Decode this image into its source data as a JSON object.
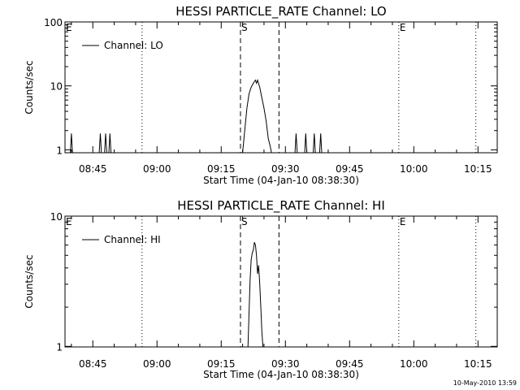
{
  "chart_data": [
    {
      "type": "line",
      "title": "HESSI PARTICLE_RATE Channel: LO",
      "xlabel": "Start Time (04-Jan-10 08:38:30)",
      "ylabel": "Counts/sec",
      "y_scale": "log",
      "ylim": [
        0.9,
        100
      ],
      "y_ticks": [
        {
          "value": 1,
          "label": "1"
        },
        {
          "value": 10,
          "label": "10"
        },
        {
          "value": 100,
          "label": "100"
        }
      ],
      "x_range": [
        "08:38:30",
        "10:19:30"
      ],
      "x_ticks": [
        {
          "value": "08:45",
          "label": "08:45"
        },
        {
          "value": "09:00",
          "label": "09:00"
        },
        {
          "value": "09:15",
          "label": "09:15"
        },
        {
          "value": "09:30",
          "label": "09:30"
        },
        {
          "value": "09:45",
          "label": "09:45"
        },
        {
          "value": "10:00",
          "label": "10:00"
        },
        {
          "value": "10:15",
          "label": "10:15"
        }
      ],
      "legend": {
        "entry": "Channel: LO",
        "placement": "top-left"
      },
      "markers": [
        {
          "time": "08:38:30",
          "label": "E",
          "style": "none"
        },
        {
          "time": "08:56:30",
          "label": "",
          "style": "dotted"
        },
        {
          "time": "09:19:30",
          "label": "S",
          "style": "dashed"
        },
        {
          "time": "09:28:30",
          "label": "",
          "style": "dashed"
        },
        {
          "time": "09:56:30",
          "label": "E",
          "style": "dotted"
        },
        {
          "time": "10:14:30",
          "label": "",
          "style": "dotted"
        }
      ],
      "series": [
        {
          "name": "Channel: LO",
          "segments": [
            [
              [
                "08:39:45",
                0.9
              ],
              [
                "08:40:00",
                1.8
              ],
              [
                "08:40:15",
                0.9
              ]
            ],
            [
              [
                "08:46:30",
                0.9
              ],
              [
                "08:46:45",
                1.8
              ],
              [
                "08:47:00",
                0.9
              ]
            ],
            [
              [
                "08:47:45",
                0.9
              ],
              [
                "08:48:00",
                1.8
              ],
              [
                "08:48:15",
                0.9
              ]
            ],
            [
              [
                "08:48:45",
                0.9
              ],
              [
                "08:49:00",
                1.8
              ],
              [
                "08:49:15",
                0.9
              ]
            ],
            [
              [
                "09:20:00",
                0.9
              ],
              [
                "09:20:30",
                2.0
              ],
              [
                "09:21:00",
                4.5
              ],
              [
                "09:21:30",
                7.5
              ],
              [
                "09:22:00",
                9.5
              ],
              [
                "09:22:30",
                11.0
              ],
              [
                "09:23:00",
                12.3
              ],
              [
                "09:23:15",
                11.0
              ],
              [
                "09:23:30",
                12.3
              ],
              [
                "09:24:00",
                9.5
              ],
              [
                "09:24:30",
                6.5
              ],
              [
                "09:25:00",
                4.5
              ],
              [
                "09:25:30",
                2.8
              ],
              [
                "09:26:00",
                1.5
              ],
              [
                "09:26:30",
                1.1
              ],
              [
                "09:26:45",
                0.9
              ]
            ],
            [
              [
                "09:32:15",
                0.9
              ],
              [
                "09:32:30",
                1.8
              ],
              [
                "09:32:45",
                0.9
              ]
            ],
            [
              [
                "09:34:30",
                0.9
              ],
              [
                "09:34:45",
                1.8
              ],
              [
                "09:35:00",
                0.9
              ]
            ],
            [
              [
                "09:36:30",
                0.9
              ],
              [
                "09:36:45",
                1.8
              ],
              [
                "09:37:00",
                0.9
              ]
            ],
            [
              [
                "09:38:00",
                0.9
              ],
              [
                "09:38:15",
                1.8
              ],
              [
                "09:38:30",
                0.9
              ]
            ]
          ]
        }
      ]
    },
    {
      "type": "line",
      "title": "HESSI PARTICLE_RATE Channel: HI",
      "xlabel": "Start Time (04-Jan-10 08:38:30)",
      "ylabel": "Counts/sec",
      "y_scale": "log",
      "ylim": [
        0.99,
        10
      ],
      "y_ticks": [
        {
          "value": 1,
          "label": "1"
        },
        {
          "value": 10,
          "label": "10"
        }
      ],
      "x_range": [
        "08:38:30",
        "10:19:30"
      ],
      "x_ticks": [
        {
          "value": "08:45",
          "label": "08:45"
        },
        {
          "value": "09:00",
          "label": "09:00"
        },
        {
          "value": "09:15",
          "label": "09:15"
        },
        {
          "value": "09:30",
          "label": "09:30"
        },
        {
          "value": "09:45",
          "label": "09:45"
        },
        {
          "value": "10:00",
          "label": "10:00"
        },
        {
          "value": "10:15",
          "label": "10:15"
        }
      ],
      "legend": {
        "entry": "Channel: HI",
        "placement": "top-left"
      },
      "markers": [
        {
          "time": "08:38:30",
          "label": "E",
          "style": "none"
        },
        {
          "time": "08:56:30",
          "label": "",
          "style": "dotted"
        },
        {
          "time": "09:19:30",
          "label": "S",
          "style": "dashed"
        },
        {
          "time": "09:28:30",
          "label": "",
          "style": "dashed"
        },
        {
          "time": "09:56:30",
          "label": "E",
          "style": "dotted"
        },
        {
          "time": "10:14:30",
          "label": "",
          "style": "dotted"
        }
      ],
      "series": [
        {
          "name": "Channel: HI",
          "segments": [
            [
              [
                "09:21:15",
                0.99
              ],
              [
                "09:21:30",
                1.8
              ],
              [
                "09:21:45",
                3.2
              ],
              [
                "09:22:00",
                4.6
              ],
              [
                "09:22:15",
                5.2
              ],
              [
                "09:22:30",
                5.5
              ],
              [
                "09:22:45",
                6.3
              ],
              [
                "09:23:00",
                6.0
              ],
              [
                "09:23:15",
                5.0
              ],
              [
                "09:23:30",
                3.6
              ],
              [
                "09:23:45",
                4.2
              ],
              [
                "09:24:00",
                3.0
              ],
              [
                "09:24:15",
                2.0
              ],
              [
                "09:24:30",
                1.3
              ],
              [
                "09:24:45",
                0.99
              ]
            ]
          ]
        }
      ]
    }
  ],
  "footer": {
    "timestamp": "10-May-2010 13:59"
  }
}
